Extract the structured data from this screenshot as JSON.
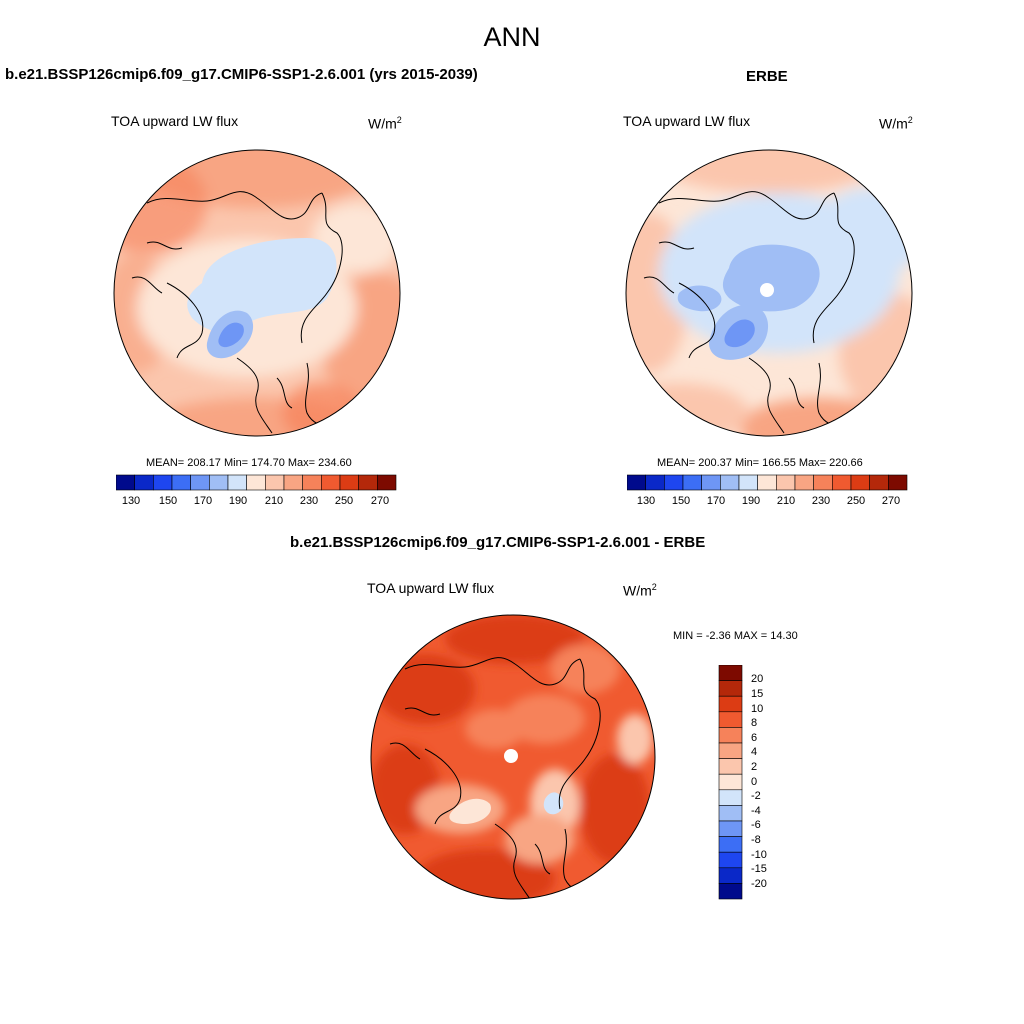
{
  "page_title": "ANN",
  "panels": [
    {
      "title": "b.e21.BSSP126cmip6.f09_g17.CMIP6-SSP1-2.6.001 (yrs 2015-2039)",
      "variable": "TOA upward LW flux",
      "units_base": "W/m",
      "units_exp": "2",
      "stats": "MEAN= 208.17  Min= 174.70  Max= 234.60"
    },
    {
      "title": "ERBE",
      "variable": "TOA upward LW flux",
      "units_base": "W/m",
      "units_exp": "2",
      "stats": "MEAN= 200.37  Min= 166.55  Max= 220.66"
    },
    {
      "title": "b.e21.BSSP126cmip6.f09_g17.CMIP6-SSP1-2.6.001 - ERBE",
      "variable": "TOA upward LW flux",
      "units_base": "W/m",
      "units_exp": "2",
      "stats": "MIN =  -2.36 MAX =  14.30"
    }
  ],
  "colorbar_abs": {
    "colors": [
      "#000a8c",
      "#0a28c8",
      "#1e46f0",
      "#3c6ef5",
      "#6e96f5",
      "#a0bef5",
      "#d2e4fa",
      "#fde6d7",
      "#fbc6ad",
      "#f8a583",
      "#f6825a",
      "#f05a30",
      "#dc3c14",
      "#b4280a",
      "#7d0a00"
    ],
    "labels": [
      "130",
      "150",
      "170",
      "190",
      "210",
      "230",
      "250",
      "270"
    ]
  },
  "colorbar_diff": {
    "colors_top_to_bottom": [
      "#7d0a00",
      "#b4280a",
      "#dc3c14",
      "#f05a30",
      "#f6825a",
      "#f8a583",
      "#fbc6ad",
      "#fde6d7",
      "#d2e4fa",
      "#a0bef5",
      "#6e96f5",
      "#3c6ef5",
      "#1e46f0",
      "#0a28c8",
      "#000a8c"
    ],
    "labels": [
      "20",
      "15",
      "10",
      "8",
      "6",
      "4",
      "2",
      "0",
      "-2",
      "-4",
      "-6",
      "-8",
      "-10",
      "-15",
      "-20"
    ]
  }
}
